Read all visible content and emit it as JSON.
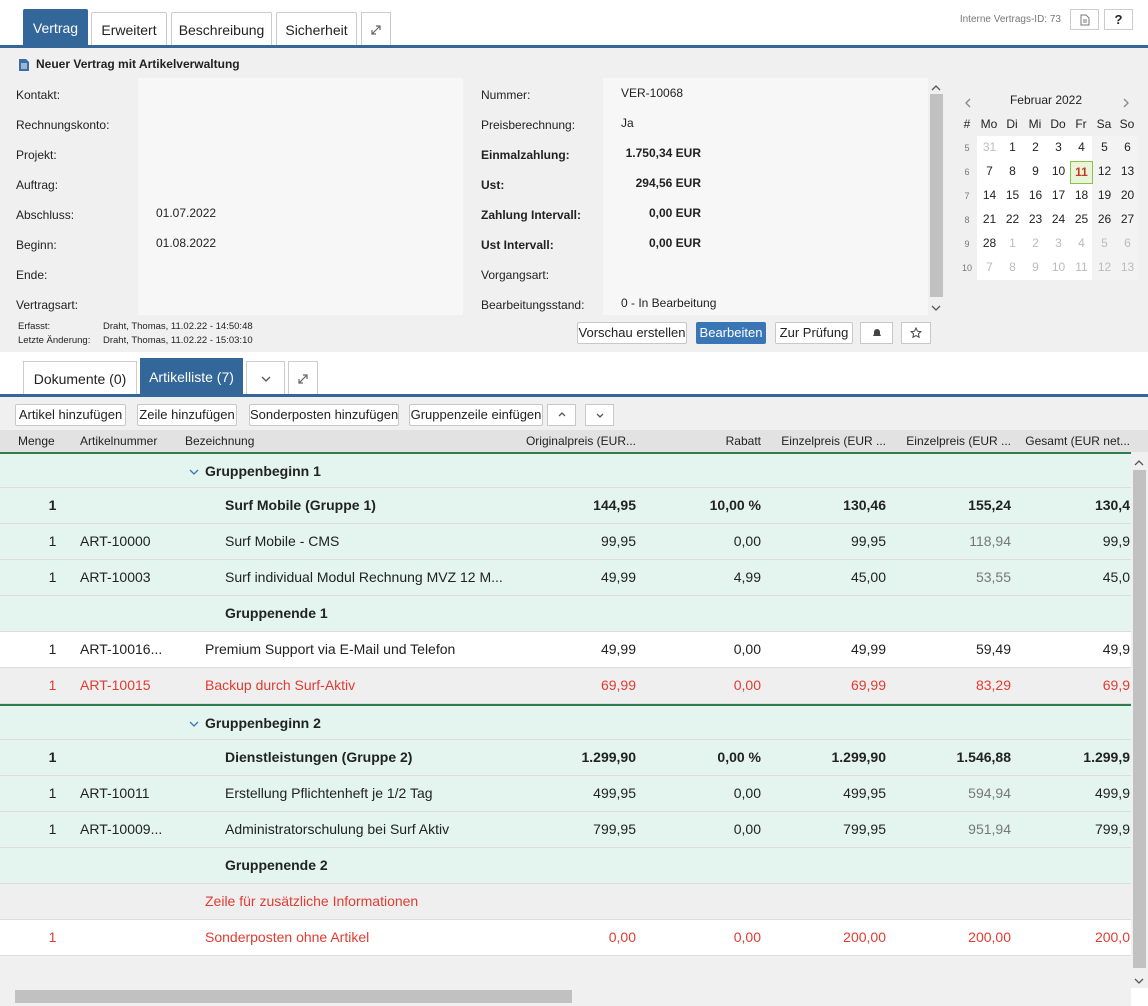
{
  "tabs": [
    "Vertrag",
    "Erweitert",
    "Beschreibung",
    "Sicherheit"
  ],
  "contract_id": "Interne Vertrags-ID: 73",
  "help": "?",
  "title": "Neuer Vertrag mit Artikelverwaltung",
  "form_left": [
    {
      "label": "Kontakt:"
    },
    {
      "label": "Rechnungskonto:"
    },
    {
      "label": "Projekt:"
    },
    {
      "label": "Auftrag:"
    },
    {
      "label": "Abschluss:",
      "value": "01.07.2022"
    },
    {
      "label": "Beginn:",
      "value": "01.08.2022"
    },
    {
      "label": "Ende:"
    },
    {
      "label": "Vertragsart:"
    }
  ],
  "form_right": [
    {
      "label": "Nummer:",
      "value": "VER-10068"
    },
    {
      "label": "Preisberechnung:",
      "value": "Ja"
    },
    {
      "label": "Einmalzahlung:",
      "value": "1.750,34 EUR",
      "bold": true
    },
    {
      "label": "Ust:",
      "value": "294,56 EUR",
      "bold": true
    },
    {
      "label": "Zahlung Intervall:",
      "value": "0,00 EUR",
      "bold": true
    },
    {
      "label": "Ust Intervall:",
      "value": "0,00 EUR",
      "bold": true
    },
    {
      "label": "Vorgangsart:"
    },
    {
      "label": "Bearbeitungsstand:",
      "value": "0 - In Bearbeitung"
    }
  ],
  "calendar": {
    "month": "Februar 2022",
    "header": [
      "#",
      "Mo",
      "Di",
      "Mi",
      "Do",
      "Fr",
      "Sa",
      "So"
    ],
    "selected": 11,
    "weeks": [
      {
        "week": 5,
        "days": [
          31,
          1,
          2,
          3,
          4,
          5,
          6
        ]
      },
      {
        "week": 6,
        "days": [
          7,
          8,
          9,
          10,
          11,
          12,
          13
        ]
      },
      {
        "week": 7,
        "days": [
          14,
          15,
          16,
          17,
          18,
          19,
          20
        ]
      },
      {
        "week": 8,
        "days": [
          21,
          22,
          23,
          24,
          25,
          26,
          27
        ]
      },
      {
        "week": 9,
        "days": [
          28,
          1,
          2,
          3,
          4,
          5,
          6
        ]
      },
      {
        "week": 10,
        "days": [
          7,
          8,
          9,
          10,
          11,
          12,
          13
        ]
      }
    ]
  },
  "meta": [
    {
      "label": "Erfasst:",
      "value": "Draht, Thomas, 11.02.22 - 14:50:48"
    },
    {
      "label": "Letzte Änderung:",
      "value": "Draht, Thomas, 11.02.22 - 15:03:10"
    }
  ],
  "actions": [
    "Vorschau erstellen",
    "Bearbeiten",
    "Zur Prüfung"
  ],
  "lower_tabs": [
    "Dokumente (0)",
    "Artikelliste (7)"
  ],
  "toolbar": [
    "Artikel hinzufügen",
    "Zeile hinzufügen",
    "Sonderposten hinzufügen",
    "Gruppenzeile einfügen"
  ],
  "table": {
    "columns": [
      "Menge",
      "Artikelnummer",
      "Bezeichnung",
      "Originalpreis (EUR...",
      "Rabatt",
      "Einzelpreis (EUR ...",
      "Einzelpreis (EUR ...",
      "Gesamt (EUR net..."
    ],
    "rows": [
      {
        "kind": "group-start",
        "cells": [
          null,
          null,
          "Gruppenbeginn 1",
          null,
          null,
          null,
          null,
          null
        ]
      },
      {
        "kind": "group-header",
        "cells": [
          "1",
          null,
          "Surf Mobile (Gruppe 1)",
          "144,95",
          "10,00 %",
          "130,46",
          "155,24",
          "130,4"
        ]
      },
      {
        "kind": "child",
        "cells": [
          "1",
          "ART-10000",
          "Surf Mobile - CMS",
          "99,95",
          "0,00",
          "99,95",
          "118,94",
          "99,9"
        ]
      },
      {
        "kind": "child",
        "cells": [
          "1",
          "ART-10003",
          "Surf individual Modul Rechnung MVZ 12 M...",
          "49,99",
          "4,99",
          "45,00",
          "53,55",
          "45,0"
        ]
      },
      {
        "kind": "group-end",
        "cells": [
          null,
          null,
          "Gruppenende 1",
          null,
          null,
          null,
          null,
          null
        ]
      },
      {
        "kind": "item",
        "cells": [
          "1",
          "ART-10016...",
          "Premium Support via E-Mail und Telefon",
          "49,99",
          "0,00",
          "49,99",
          "59,49",
          "49,9"
        ]
      },
      {
        "kind": "highlight",
        "cells": [
          "1",
          "ART-10015",
          "Backup durch Surf-Aktiv",
          "69,99",
          "0,00",
          "69,99",
          "83,29",
          "69,9"
        ]
      },
      {
        "kind": "group-start",
        "cells": [
          null,
          null,
          "Gruppenbeginn 2",
          null,
          null,
          null,
          null,
          null
        ]
      },
      {
        "kind": "group-header",
        "cells": [
          "1",
          null,
          "Dienstleistungen (Gruppe 2)",
          "1.299,90",
          "0,00 %",
          "1.299,90",
          "1.546,88",
          "1.299,9"
        ]
      },
      {
        "kind": "child",
        "cells": [
          "1",
          "ART-10011",
          "Erstellung Pflichtenheft je 1/2 Tag",
          "499,95",
          "0,00",
          "499,95",
          "594,94",
          "499,9"
        ]
      },
      {
        "kind": "child",
        "cells": [
          "1",
          "ART-10009...",
          "Administratorschulung bei Surf Aktiv",
          "799,95",
          "0,00",
          "799,95",
          "951,94",
          "799,9"
        ]
      },
      {
        "kind": "group-end",
        "cells": [
          null,
          null,
          "Gruppenende 2",
          null,
          null,
          null,
          null,
          null
        ]
      },
      {
        "kind": "note",
        "cells": [
          null,
          null,
          "Zeile für zusätzliche Informationen",
          null,
          null,
          null,
          null,
          null
        ]
      },
      {
        "kind": "special",
        "cells": [
          "1",
          null,
          "Sonderposten ohne Artikel",
          "0,00",
          "0,00",
          "200,00",
          "200,00",
          "200,0"
        ]
      }
    ]
  }
}
